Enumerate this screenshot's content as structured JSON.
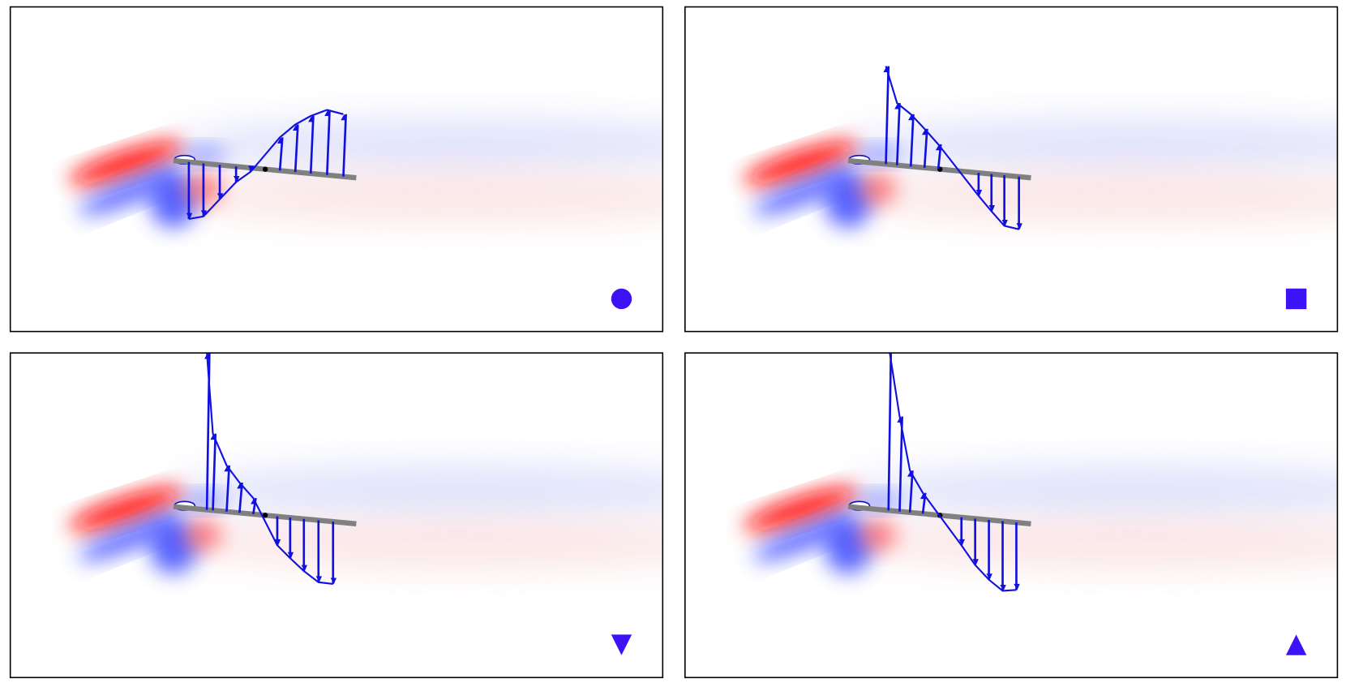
{
  "panels": [
    {
      "marker": "circle",
      "color": "#3d12f6"
    },
    {
      "marker": "square",
      "color": "#3d12f6"
    },
    {
      "marker": "triangle-down",
      "color": "#3d12f6"
    },
    {
      "marker": "triangle-up",
      "color": "#3d12f6"
    }
  ]
}
